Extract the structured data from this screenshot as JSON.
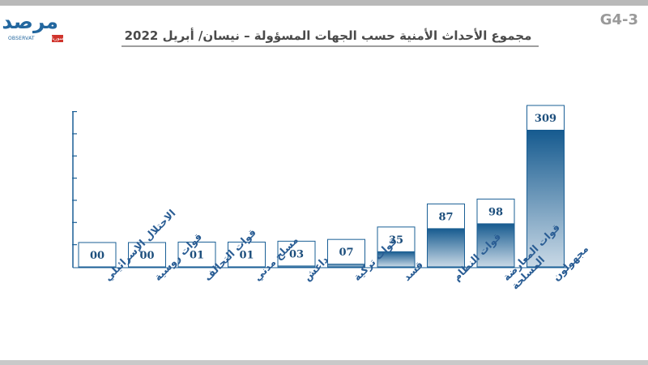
{
  "header": {
    "title": "مجموع الأحداث الأمنية حسب الجهات المسؤولة – نيسان/ أبريل 2022",
    "code": "G4-3",
    "logo_text": "مرصد",
    "logo_sub": "OBSERVAT",
    "logo_badge": "سوريا"
  },
  "colors": {
    "bar_dark": "#155a8f",
    "bar_light": "#c9d9e6",
    "bar_outline": "#1a5f96",
    "label_color": "#2a5d94",
    "value_color": "#1c4e7c"
  },
  "chart_data": {
    "type": "bar",
    "title": "مجموع الأحداث الأمنية حسب الجهات المسؤولة – نيسان/ أبريل 2022",
    "categories": [
      "الاحتلال الإسرائيلي",
      "قوات روسية",
      "قوات التحالف",
      "مسلح مدني",
      "داعش",
      "قوات تركية",
      "قسد",
      "قوات النظام",
      "قوات المعارضة المسلحة",
      "مجهولون"
    ],
    "value_labels": [
      "00",
      "00",
      "01",
      "01",
      "03",
      "07",
      "35",
      "87",
      "98",
      "309"
    ],
    "values": [
      0,
      0,
      1,
      1,
      3,
      7,
      35,
      87,
      98,
      309
    ],
    "ylim": [
      0,
      350
    ],
    "xlabel": "",
    "ylabel": "",
    "grid": false,
    "legend": "none"
  }
}
